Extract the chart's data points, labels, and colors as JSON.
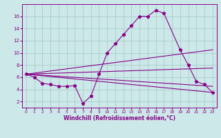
{
  "background_color": "#cce8e8",
  "grid_color": "#aacccc",
  "line_color": "#880088",
  "marker": "*",
  "xlabel": "Windchill (Refroidissement éolien,°C)",
  "xlim": [
    -0.5,
    23.5
  ],
  "ylim": [
    1,
    18
  ],
  "yticks": [
    2,
    4,
    6,
    8,
    10,
    12,
    14,
    16
  ],
  "xticks": [
    0,
    1,
    2,
    3,
    4,
    5,
    6,
    7,
    8,
    9,
    10,
    11,
    12,
    13,
    14,
    15,
    16,
    17,
    18,
    19,
    20,
    21,
    22,
    23
  ],
  "main_series": {
    "x": [
      0,
      1,
      2,
      3,
      4,
      5,
      6,
      7,
      8,
      9,
      10,
      11,
      12,
      13,
      14,
      15,
      16,
      17,
      19,
      20,
      21,
      22,
      23
    ],
    "y": [
      6.5,
      6.0,
      5.0,
      4.8,
      4.5,
      4.5,
      4.6,
      1.7,
      2.9,
      6.5,
      10.0,
      11.5,
      13.0,
      14.5,
      16.0,
      16.0,
      17.0,
      16.5,
      10.5,
      8.0,
      5.3,
      4.8,
      3.5
    ]
  },
  "straight_lines": [
    {
      "x": [
        0,
        23
      ],
      "y": [
        6.5,
        3.5
      ]
    },
    {
      "x": [
        0,
        23
      ],
      "y": [
        6.5,
        10.5
      ]
    },
    {
      "x": [
        0,
        23
      ],
      "y": [
        6.5,
        7.5
      ]
    },
    {
      "x": [
        0,
        23
      ],
      "y": [
        6.5,
        4.5
      ]
    }
  ]
}
